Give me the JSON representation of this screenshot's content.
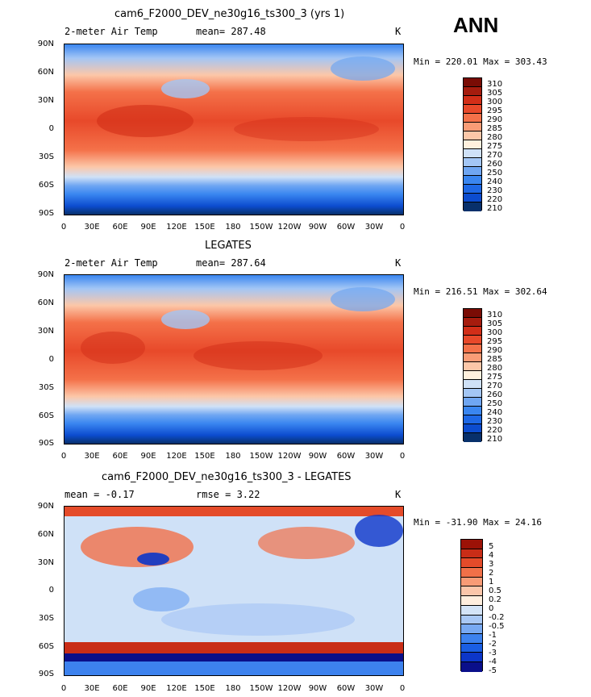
{
  "season": "ANN",
  "lat_labels": [
    "90N",
    "60N",
    "30N",
    "0",
    "30S",
    "60S",
    "90S"
  ],
  "lon_labels": [
    "0",
    "30E",
    "60E",
    "90E",
    "120E",
    "150E",
    "180",
    "150W",
    "120W",
    "90W",
    "60W",
    "30W",
    "0"
  ],
  "colors": {
    "abs_scale": [
      "#08306b",
      "#0c4ccf",
      "#1e68e6",
      "#3a86f0",
      "#6fa6f2",
      "#a3c6f5",
      "#cfe1f7",
      "#fff0dd",
      "#fcc7a8",
      "#f99c76",
      "#f47149",
      "#e8492a",
      "#d22e18",
      "#a61c0e",
      "#7a0c05"
    ],
    "diff_scale": [
      "#0a0f8a",
      "#0c36c9",
      "#1a5ee3",
      "#3d82ee",
      "#78a9f2",
      "#a9c8f5",
      "#d4e4f7",
      "#ffeede",
      "#fbc6aa",
      "#f89b76",
      "#f17048",
      "#e44b2a",
      "#c92d17",
      "#9c1207"
    ]
  },
  "panels": [
    {
      "title": "cam6_F2000_DEV_ne30g16_ts300_3 (yrs 1)",
      "left_label": "2-meter Air Temp",
      "mean_text": "mean= 287.48",
      "units": "K",
      "minmax_text": "Min = 220.01 Max = 303.43",
      "colorbar_labels": [
        "310",
        "305",
        "300",
        "295",
        "290",
        "285",
        "280",
        "275",
        "270",
        "260",
        "250",
        "240",
        "230",
        "220",
        "210"
      ]
    },
    {
      "title": "LEGATES",
      "left_label": "2-meter Air Temp",
      "mean_text": "mean= 287.64",
      "units": "K",
      "minmax_text": "Min = 216.51 Max = 302.64",
      "colorbar_labels": [
        "310",
        "305",
        "300",
        "295",
        "290",
        "285",
        "280",
        "275",
        "270",
        "260",
        "250",
        "240",
        "230",
        "220",
        "210"
      ]
    },
    {
      "title": "cam6_F2000_DEV_ne30g16_ts300_3 - LEGATES",
      "left_label": "mean =   -0.17",
      "mean_text": "rmse =    3.22",
      "units": "K",
      "minmax_text": "Min = -31.90 Max =  24.16",
      "colorbar_labels": [
        "5",
        "4",
        "3",
        "2",
        "1",
        "0.5",
        "0.2",
        "0",
        "-0.2",
        "-0.5",
        "-1",
        "-2",
        "-3",
        "-4",
        "-5"
      ]
    }
  ]
}
